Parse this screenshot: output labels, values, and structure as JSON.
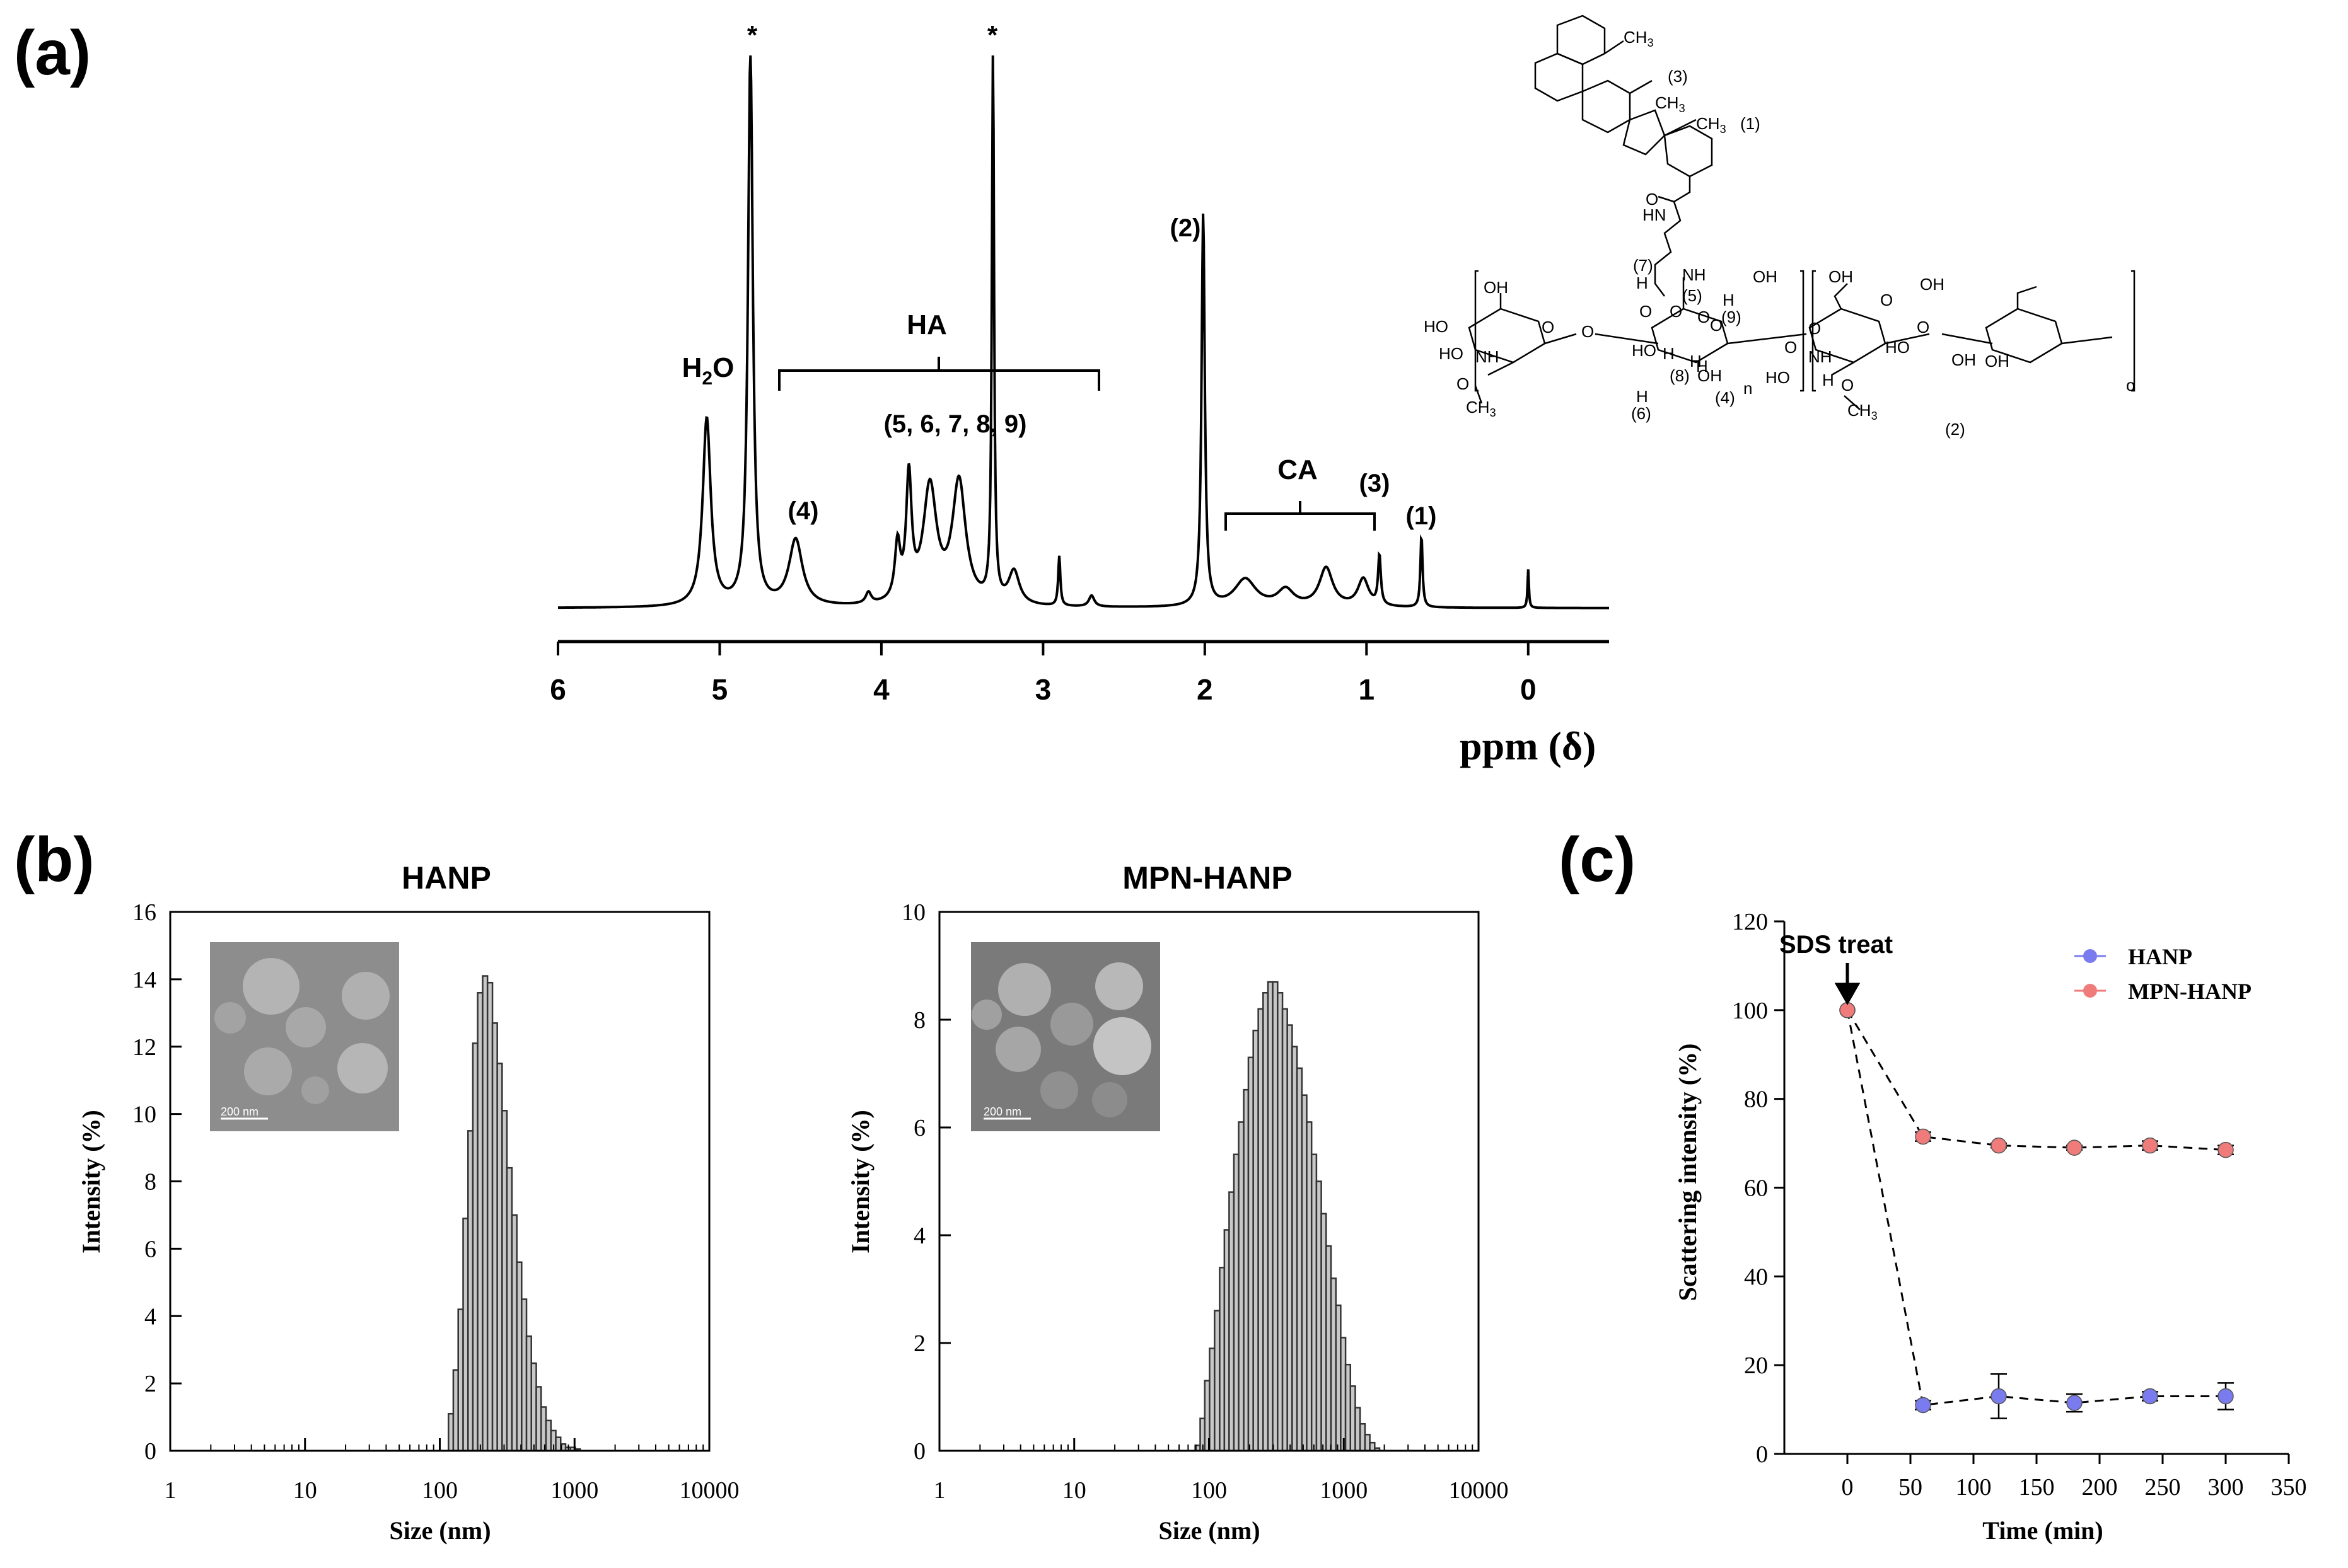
{
  "panels": {
    "a": {
      "label": "(a)"
    },
    "b": {
      "label": "(b)"
    },
    "c": {
      "label": "(c)"
    }
  },
  "chart_data": [
    {
      "type": "line",
      "panel": "(a)",
      "title": "",
      "xlabel": "ppm (δ)",
      "ylabel": "",
      "xlim": [
        6.0,
        -0.5
      ],
      "x_ticks": [
        "6",
        "5",
        "4",
        "3",
        "2",
        "1",
        "0"
      ],
      "x_reversed": true,
      "grid": false,
      "spectrum_peaks": [
        {
          "ppm": 5.08,
          "height": 0.34,
          "width": 0.03
        },
        {
          "ppm": 4.81,
          "height": 1.0,
          "width": 0.018
        },
        {
          "ppm": 4.53,
          "height": 0.12,
          "width": 0.05
        },
        {
          "ppm": 4.08,
          "height": 0.02,
          "width": 0.02
        },
        {
          "ppm": 3.9,
          "height": 0.1,
          "width": 0.02
        },
        {
          "ppm": 3.83,
          "height": 0.22,
          "width": 0.02
        },
        {
          "ppm": 3.7,
          "height": 0.21,
          "width": 0.05
        },
        {
          "ppm": 3.52,
          "height": 0.22,
          "width": 0.05
        },
        {
          "ppm": 3.31,
          "height": 1.0,
          "width": 0.008
        },
        {
          "ppm": 3.18,
          "height": 0.06,
          "width": 0.04
        },
        {
          "ppm": 2.9,
          "height": 0.09,
          "width": 0.008
        },
        {
          "ppm": 2.7,
          "height": 0.02,
          "width": 0.02
        },
        {
          "ppm": 2.01,
          "height": 0.71,
          "width": 0.012
        },
        {
          "ppm": 1.75,
          "height": 0.05,
          "width": 0.08
        },
        {
          "ppm": 1.5,
          "height": 0.03,
          "width": 0.06
        },
        {
          "ppm": 1.25,
          "height": 0.07,
          "width": 0.05
        },
        {
          "ppm": 1.02,
          "height": 0.05,
          "width": 0.04
        },
        {
          "ppm": 0.92,
          "height": 0.09,
          "width": 0.01
        },
        {
          "ppm": 0.66,
          "height": 0.13,
          "width": 0.008
        },
        {
          "ppm": 0.0,
          "height": 0.07,
          "width": 0.005
        }
      ],
      "annotations": [
        {
          "text": "*",
          "ppm": 4.81
        },
        {
          "text": "*",
          "ppm": 3.31
        },
        {
          "text": "H2O",
          "ppm": 5.08
        },
        {
          "text": "HA",
          "ppm_range": [
            4.65,
            2.65
          ]
        },
        {
          "text": "(5, 6, 7, 8, 9)",
          "ppm": 3.55
        },
        {
          "text": "(4)",
          "ppm": 4.53
        },
        {
          "text": "(2)",
          "ppm": 2.01
        },
        {
          "text": "CA",
          "ppm_range": [
            1.9,
            0.92
          ]
        },
        {
          "text": "(3)",
          "ppm": 0.92
        },
        {
          "text": "(1)",
          "ppm": 0.66
        }
      ],
      "structure_labels": [
        "CH3",
        "CH3",
        "CH3",
        "(1)",
        "(2)",
        "(3)",
        "(4)",
        "(5)",
        "(6)",
        "(7)",
        "(8)",
        "(9)",
        "HN",
        "NH",
        "NH",
        "NH",
        "HO",
        "HO",
        "HO",
        "HO",
        "OH",
        "OH",
        "OH",
        "OH",
        "OH",
        "OH",
        "H",
        "H",
        "H",
        "H",
        "H",
        "O",
        "O",
        "O",
        "O",
        "n",
        "o"
      ]
    },
    {
      "type": "bar",
      "panel": "(b)",
      "title": "HANP",
      "xlabel": "Size (nm)",
      "ylabel": "Intensity (%)",
      "x_scale": "log",
      "xlim": [
        1,
        10000
      ],
      "ylim": [
        0,
        16
      ],
      "x_ticks": [
        "1",
        "10",
        "100",
        "1000",
        "10000"
      ],
      "y_ticks": [
        "0",
        "2",
        "4",
        "6",
        "8",
        "10",
        "12",
        "14",
        "16"
      ],
      "inset_scale_label": "200 nm",
      "x": [
        116,
        126,
        137,
        149,
        162,
        176,
        191,
        208,
        226,
        246,
        267,
        290,
        315,
        343,
        373,
        405,
        440,
        478,
        520,
        565,
        614,
        668,
        726,
        789,
        858,
        932,
        1013
      ],
      "values": [
        1.1,
        2.4,
        4.2,
        6.9,
        9.5,
        12.1,
        13.6,
        14.1,
        13.9,
        12.7,
        11.5,
        10.1,
        8.4,
        7.0,
        5.6,
        4.5,
        3.4,
        2.6,
        1.9,
        1.3,
        0.9,
        0.6,
        0.4,
        0.2,
        0.1,
        0.1,
        0.05
      ]
    },
    {
      "type": "bar",
      "panel": "(b)",
      "title": "MPN-HANP",
      "xlabel": "Size (nm)",
      "ylabel": "Intensity (%)",
      "x_scale": "log",
      "xlim": [
        1,
        10000
      ],
      "ylim": [
        0,
        10
      ],
      "x_ticks": [
        "1",
        "10",
        "100",
        "1000",
        "10000"
      ],
      "y_ticks": [
        "0",
        "2",
        "4",
        "6",
        "8",
        "10"
      ],
      "inset_scale_label": "200 nm",
      "x": [
        79,
        86,
        93,
        101,
        110,
        120,
        130,
        141,
        153,
        166,
        181,
        196,
        213,
        232,
        252,
        274,
        297,
        323,
        351,
        381,
        414,
        450,
        489,
        531,
        577,
        627,
        681,
        740,
        804,
        874,
        949,
        1031,
        1120,
        1217,
        1322,
        1437,
        1561,
        1696
      ],
      "values": [
        0.1,
        0.6,
        1.3,
        1.9,
        2.6,
        3.4,
        4.1,
        4.8,
        5.5,
        6.1,
        6.7,
        7.3,
        7.8,
        8.2,
        8.5,
        8.7,
        8.7,
        8.5,
        8.2,
        7.9,
        7.5,
        7.1,
        6.6,
        6.1,
        5.5,
        5.0,
        4.4,
        3.8,
        3.2,
        2.7,
        2.1,
        1.6,
        1.2,
        0.8,
        0.5,
        0.3,
        0.15,
        0.05
      ]
    },
    {
      "type": "line",
      "panel": "(c)",
      "title": "",
      "xlabel": "Time (min)",
      "ylabel": "Scattering intensity (%)",
      "xlim": [
        -50,
        350
      ],
      "ylim": [
        0,
        120
      ],
      "x_ticks": [
        "0",
        "50",
        "100",
        "150",
        "200",
        "250",
        "300",
        "350"
      ],
      "y_ticks": [
        "0",
        "20",
        "40",
        "60",
        "80",
        "100",
        "120"
      ],
      "legend_position": "top-right",
      "annotation": {
        "text": "SDS treat",
        "x": 0
      },
      "series": [
        {
          "name": "HANP",
          "color": "#7b7bf0",
          "x": [
            0,
            60,
            120,
            180,
            240,
            300
          ],
          "y": [
            100,
            11,
            13,
            11.5,
            13,
            13
          ],
          "err": [
            0,
            1,
            5,
            2,
            1,
            3
          ]
        },
        {
          "name": "MPN-HANP",
          "color": "#f07b7b",
          "x": [
            0,
            60,
            120,
            180,
            240,
            300
          ],
          "y": [
            100,
            71.5,
            69.5,
            69,
            69.5,
            68.5
          ],
          "err": [
            0,
            1,
            0.5,
            0.5,
            1,
            1
          ]
        }
      ]
    }
  ]
}
